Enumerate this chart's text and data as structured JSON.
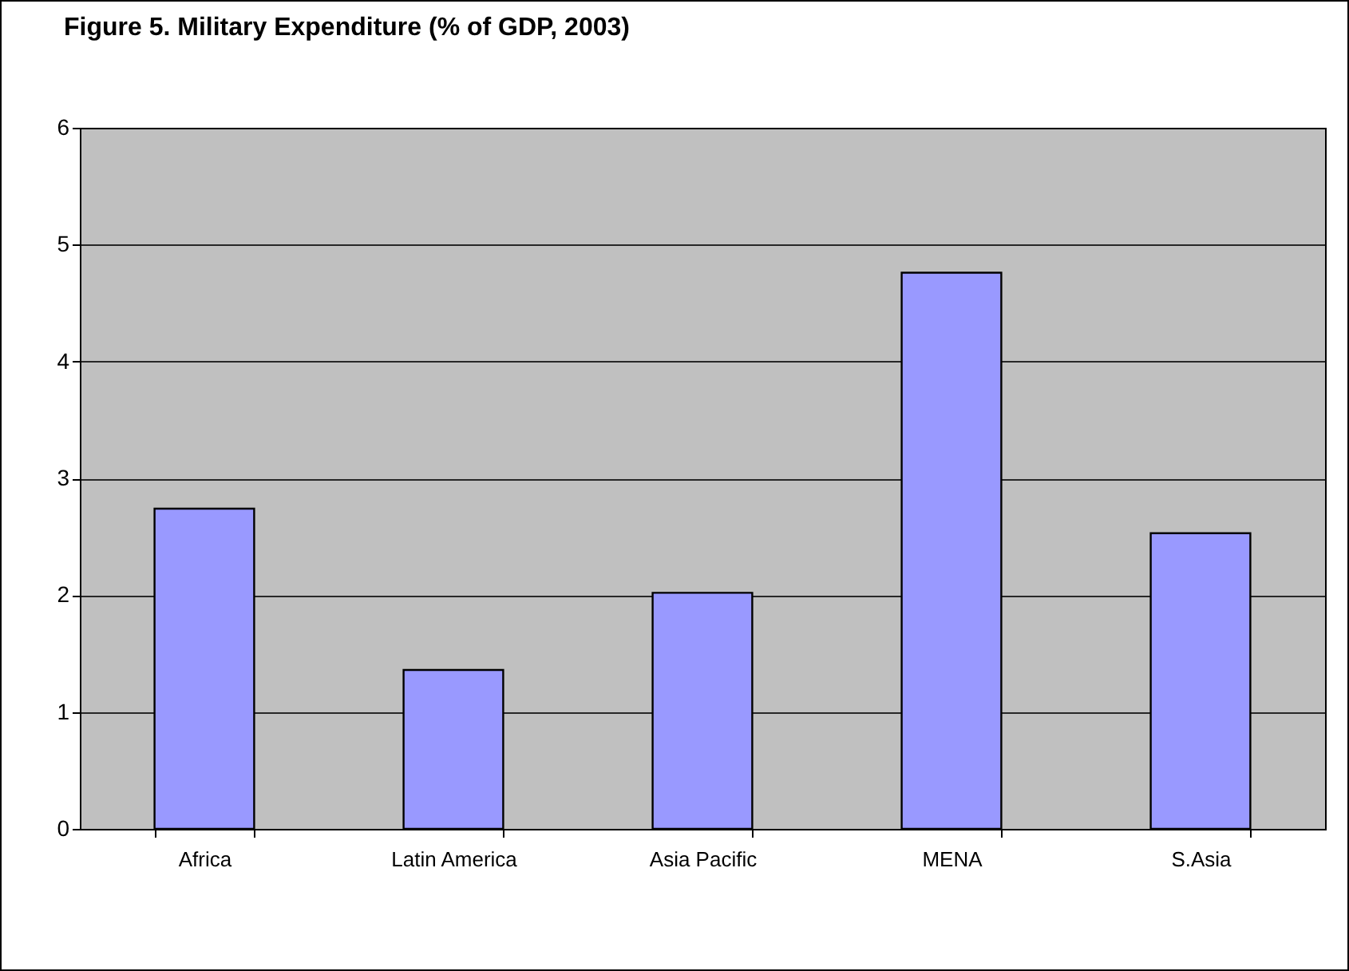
{
  "chart_data": {
    "type": "bar",
    "title": "Figure 5. Military Expenditure (% of GDP, 2003)",
    "categories": [
      "Africa",
      "Latin America",
      "Asia Pacific",
      "MENA",
      "S.Asia"
    ],
    "values": [
      2.74,
      1.36,
      2.02,
      4.76,
      2.53
    ],
    "color": "#9999ff",
    "ylim": [
      0,
      6
    ],
    "yticks": [
      0,
      1,
      2,
      3,
      4,
      5,
      6
    ],
    "grid": "y"
  }
}
